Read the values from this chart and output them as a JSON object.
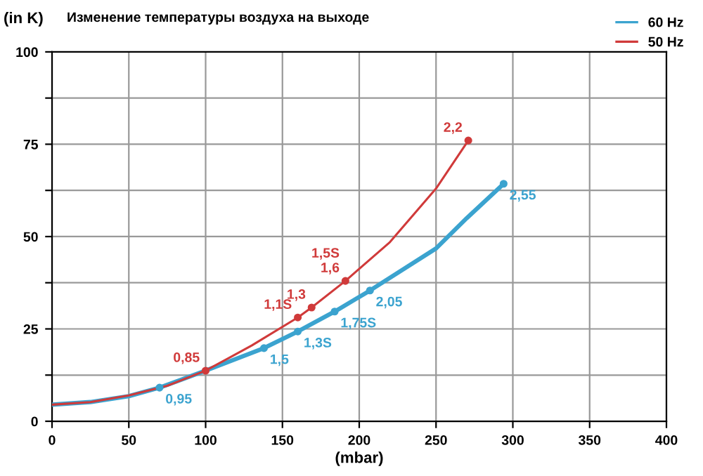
{
  "chart_data": {
    "type": "line",
    "title": "Изменение температуры воздуха на выходе",
    "ylabel": "(in K)",
    "xlabel": "(mbar)",
    "xlim": [
      0,
      400
    ],
    "xticks": [
      0,
      50,
      100,
      150,
      200,
      250,
      300,
      350,
      400
    ],
    "ylim": [
      0,
      100
    ],
    "yticks": [
      0,
      {
        "value": 12.5,
        "label": null
      },
      25,
      {
        "value": 37.5,
        "label": null
      },
      50,
      {
        "value": 62.5,
        "label": null
      },
      75,
      {
        "value": 87.5,
        "label": null
      },
      100
    ],
    "grid": true,
    "legend": "top right",
    "line_style": "solid",
    "series": [
      {
        "name": "60 Hz",
        "color": "#3ba3cf",
        "x": [
          0,
          25,
          50,
          70,
          100,
          138,
          160,
          184,
          207,
          250,
          270,
          294
        ],
        "values": [
          4.5,
          5.2,
          6.8,
          9.1,
          13.7,
          19.8,
          24.3,
          29.7,
          35.4,
          46.8,
          55,
          64.3
        ]
      },
      {
        "name": "50 Hz",
        "color": "#d03a3a",
        "x": [
          0,
          25,
          50,
          75,
          100,
          130,
          160,
          169,
          191,
          220,
          250,
          271
        ],
        "values": [
          4.5,
          5.2,
          7,
          9.6,
          13.7,
          20.5,
          28.1,
          30.8,
          38,
          48.5,
          63,
          76
        ]
      },
      {
        "type": "scatter",
        "color": "#3ba3cf",
        "marker": "circle",
        "x": [
          70,
          138,
          160,
          184,
          207,
          294
        ],
        "values": [
          9.1,
          19.8,
          24.3,
          29.7,
          35.4,
          64.3
        ]
      },
      {
        "type": "scatter",
        "color": "#d03a3a",
        "marker": "circle",
        "x": [
          100,
          160,
          169,
          191,
          271
        ],
        "values": [
          13.7,
          28.1,
          30.8,
          38,
          76
        ]
      }
    ],
    "annotations": [
      {
        "text": "0,95",
        "x": 70,
        "y": 9.1
      },
      {
        "text": "1,5",
        "x": 138,
        "y": 19.8
      },
      {
        "text": "1,3S",
        "x": 160,
        "y": 24.3
      },
      {
        "text": "1,75S",
        "x": 184,
        "y": 29.7
      },
      {
        "text": "2,05",
        "x": 207,
        "y": 35.4
      },
      {
        "text": "2,55",
        "x": 294,
        "y": 64.3
      },
      {
        "text": "0,85",
        "x": 100,
        "y": 13.7
      },
      {
        "text": "1,1S",
        "x": 160,
        "y": 28.1
      },
      {
        "text": "1,3",
        "x": 169,
        "y": 30.8
      },
      {
        "text": "1,5S\n1,6",
        "x": 191,
        "y": 38
      },
      {
        "text": "2,2",
        "x": 271,
        "y": 76
      }
    ]
  }
}
